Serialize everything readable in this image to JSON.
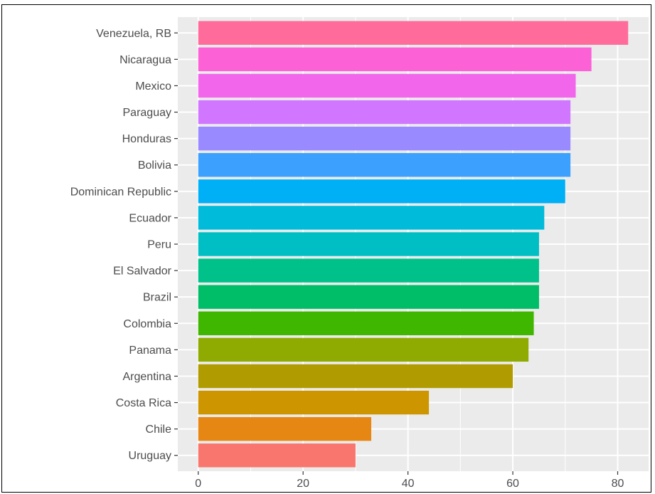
{
  "chart_data": {
    "type": "bar",
    "orientation": "horizontal",
    "title": "",
    "xlabel": "",
    "ylabel": "",
    "categories": [
      "Venezuela, RB",
      "Nicaragua",
      "Mexico",
      "Paraguay",
      "Honduras",
      "Bolivia",
      "Dominican Republic",
      "Ecuador",
      "Peru",
      "El Salvador",
      "Brazil",
      "Colombia",
      "Panama",
      "Argentina",
      "Costa Rica",
      "Chile",
      "Uruguay"
    ],
    "values": [
      82,
      75,
      72,
      71,
      71,
      71,
      70,
      66,
      65,
      65,
      65,
      64,
      63,
      60,
      44,
      33,
      30
    ],
    "colors": [
      "#FF6C9C",
      "#FC61D5",
      "#F166EA",
      "#D177FF",
      "#9A8AFF",
      "#3CA0FF",
      "#00B0F6",
      "#00BBDA",
      "#00BFC4",
      "#00C18A",
      "#00BE67",
      "#3FB600",
      "#8FAA00",
      "#B09C00",
      "#CD9600",
      "#E68613",
      "#F8766D"
    ],
    "xticks": [
      0,
      20,
      40,
      60,
      80
    ],
    "xlim": [
      -3.9,
      85.9
    ],
    "grid": true,
    "legend": "none",
    "panel_background": "#EBEBEB"
  }
}
